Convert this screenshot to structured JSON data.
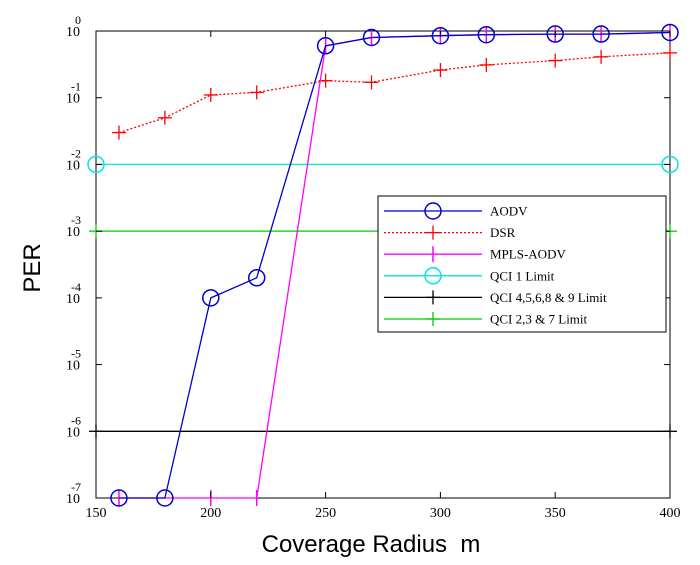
{
  "chart_data": {
    "type": "line",
    "title": "",
    "xlabel": "Coverage Radius  m",
    "ylabel": "PER",
    "xscale": "linear",
    "yscale": "log",
    "xlim": [
      150,
      400
    ],
    "ylim_exponents": [
      -7,
      0
    ],
    "x_ticks": [
      "150",
      "200",
      "250",
      "300",
      "350",
      "400"
    ],
    "y_ticks": [
      {
        "base": "10",
        "exp": "0"
      },
      {
        "base": "10",
        "exp": "-1"
      },
      {
        "base": "10",
        "exp": "-2"
      },
      {
        "base": "10",
        "exp": "-3"
      },
      {
        "base": "10",
        "exp": "-4"
      },
      {
        "base": "10",
        "exp": "-5"
      },
      {
        "base": "10",
        "exp": "-6"
      },
      {
        "base": "10",
        "exp": "-7"
      }
    ],
    "grid": false,
    "legend_position": "right-center",
    "series": [
      {
        "name": "AODV",
        "color": "#0000cc",
        "line": "solid",
        "marker": "circle",
        "x": [
          160,
          180,
          200,
          220,
          250,
          270,
          300,
          320,
          350,
          370,
          400
        ],
        "y": [
          1e-07,
          1e-07,
          0.0001,
          0.0002,
          0.6,
          0.8,
          0.85,
          0.88,
          0.9,
          0.9,
          0.95
        ]
      },
      {
        "name": "DSR",
        "color": "#ff0000",
        "line": "dotted",
        "marker": "plus",
        "x": [
          160,
          180,
          200,
          220,
          250,
          270,
          300,
          320,
          350,
          370,
          400
        ],
        "y": [
          0.03,
          0.05,
          0.11,
          0.12,
          0.18,
          0.17,
          0.26,
          0.31,
          0.36,
          0.41,
          0.47
        ]
      },
      {
        "name": "MPLS-AODV",
        "color": "#ff00ff",
        "line": "solid",
        "marker": "vbar",
        "x": [
          160,
          200,
          220,
          250,
          270,
          300,
          320,
          350,
          370,
          400
        ],
        "y": [
          1e-07,
          1e-07,
          1e-07,
          0.6,
          0.8,
          0.85,
          0.88,
          0.9,
          0.9,
          0.95
        ]
      },
      {
        "name": "QCI 1 Limit",
        "color": "#00e5e5",
        "line": "solid",
        "marker": "circle",
        "x": [
          150,
          400
        ],
        "y": [
          0.01,
          0.01
        ]
      },
      {
        "name": "QCI 4,5,6,8 & 9 Limit",
        "color": "#000000",
        "line": "solid",
        "marker": "plus",
        "x": [
          150,
          400
        ],
        "y": [
          1e-06,
          1e-06
        ]
      },
      {
        "name": "QCI 2,3 & 7 Limit",
        "color": "#00cc00",
        "line": "solid",
        "marker": "plus",
        "x": [
          150,
          400
        ],
        "y": [
          0.001,
          0.001
        ]
      }
    ]
  }
}
